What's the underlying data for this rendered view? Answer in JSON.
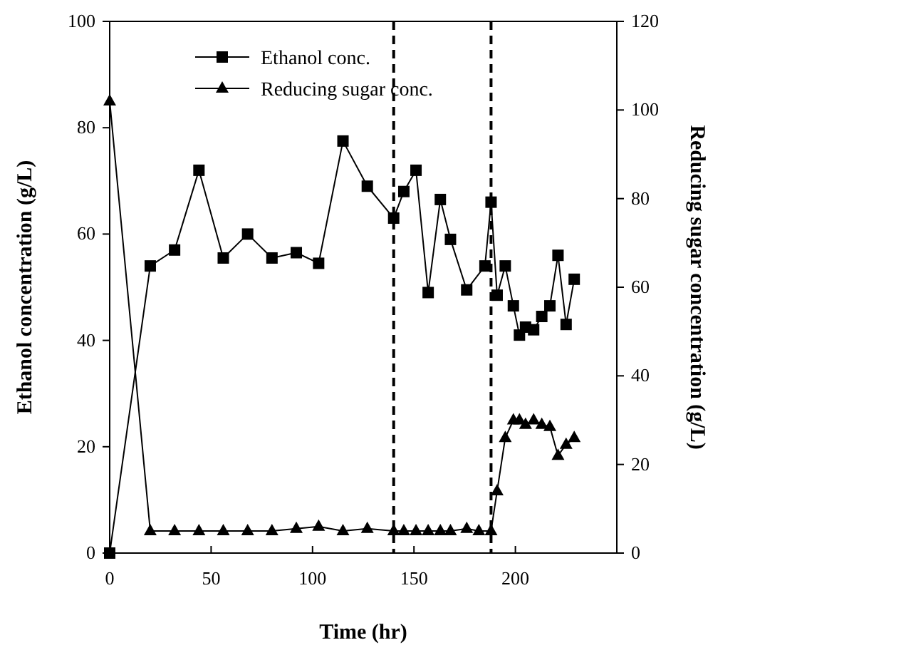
{
  "chart_data": {
    "type": "line",
    "xlabel": "Time (hr)",
    "ylabel": "Ethanol concentration (g/L)",
    "y2label": "Reducing sugar concentration (g/L)",
    "xlim": [
      0,
      250
    ],
    "xticks": [
      0,
      50,
      100,
      150,
      200
    ],
    "ylim": [
      0,
      100
    ],
    "yticks": [
      0,
      20,
      40,
      60,
      80,
      100
    ],
    "y2lim": [
      0,
      120
    ],
    "y2ticks": [
      0,
      20,
      40,
      60,
      80,
      100,
      120
    ],
    "legend": "top left",
    "grid": false,
    "ref_lines": [
      {
        "axis": "x",
        "value": 140,
        "line_style": "dashed",
        "color": "#000000"
      },
      {
        "axis": "x",
        "value": 188,
        "line_style": "dashed",
        "color": "#000000"
      }
    ],
    "series": [
      {
        "name": "Ethanol conc.",
        "color": "#000000",
        "marker": "square",
        "x": [
          0,
          20,
          32,
          44,
          56,
          68,
          80,
          92,
          103,
          115,
          127,
          140,
          145,
          151,
          157,
          163,
          168,
          176,
          185,
          188,
          191,
          195,
          199,
          202,
          205,
          209,
          213,
          217,
          221,
          225,
          229
        ],
        "values": [
          0,
          54,
          57,
          72,
          55.5,
          60,
          55.5,
          56.5,
          54.5,
          77.5,
          69,
          63,
          68,
          72,
          49,
          66.5,
          59,
          49.5,
          54,
          66,
          48.5,
          54,
          46.5,
          41,
          42.5,
          42,
          44.5,
          46.5,
          56,
          43,
          51.5
        ]
      },
      {
        "name": "Reducing sugar conc.",
        "color": "#000000",
        "marker": "triangle",
        "axis": "y2",
        "x": [
          0,
          20,
          32,
          44,
          56,
          68,
          80,
          92,
          103,
          115,
          127,
          140,
          145,
          151,
          157,
          163,
          168,
          176,
          182,
          188,
          191,
          195,
          199,
          202,
          205,
          209,
          213,
          217,
          221,
          225,
          229
        ],
        "values": [
          102,
          5,
          5,
          5,
          5,
          5,
          5,
          5.5,
          6,
          5,
          5.5,
          5,
          5,
          5,
          5,
          5,
          5,
          5.5,
          5,
          5,
          14,
          26,
          30,
          30,
          29,
          30,
          29,
          28.5,
          22,
          24.5,
          26
        ]
      }
    ]
  }
}
